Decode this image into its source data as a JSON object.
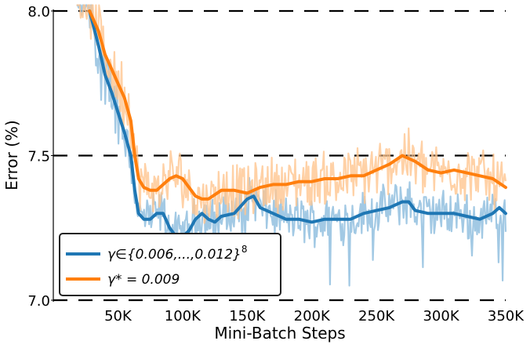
{
  "chart_data": {
    "type": "line",
    "xlabel": "Mini-Batch Steps",
    "ylabel": "Error (%)",
    "xlim": [
      0,
      350000
    ],
    "ylim": [
      7.0,
      8.0
    ],
    "xticks": [
      {
        "value": 50000,
        "label": "50K"
      },
      {
        "value": 100000,
        "label": "100K"
      },
      {
        "value": 150000,
        "label": "150K"
      },
      {
        "value": 200000,
        "label": "200K"
      },
      {
        "value": 250000,
        "label": "250K"
      },
      {
        "value": 300000,
        "label": "300K"
      },
      {
        "value": 350000,
        "label": "350K"
      }
    ],
    "yticks": [
      {
        "value": 7.0,
        "label": "7.0"
      },
      {
        "value": 7.5,
        "label": "7.5"
      },
      {
        "value": 8.0,
        "label": "8.0"
      }
    ],
    "hlines": [
      7.0,
      7.5,
      8.0
    ],
    "legend_position": "bottom-left",
    "series": [
      {
        "legend_math": "γ∈{0.006,...,0.012}",
        "legend_sup": "8",
        "color": "#1f77b4",
        "raw_color": "#92bfdf",
        "x": [
          28000,
          35000,
          40000,
          45000,
          50000,
          55000,
          60000,
          63000,
          66000,
          70000,
          75000,
          80000,
          85000,
          90000,
          95000,
          100000,
          105000,
          110000,
          115000,
          120000,
          125000,
          130000,
          140000,
          150000,
          155000,
          160000,
          170000,
          180000,
          190000,
          200000,
          210000,
          220000,
          230000,
          240000,
          250000,
          260000,
          270000,
          275000,
          280000,
          290000,
          300000,
          310000,
          320000,
          330000,
          340000,
          345000,
          350000
        ],
        "y": [
          8.0,
          7.88,
          7.78,
          7.72,
          7.65,
          7.58,
          7.5,
          7.38,
          7.3,
          7.28,
          7.28,
          7.3,
          7.3,
          7.25,
          7.22,
          7.22,
          7.24,
          7.28,
          7.3,
          7.28,
          7.27,
          7.29,
          7.3,
          7.35,
          7.36,
          7.32,
          7.3,
          7.28,
          7.28,
          7.27,
          7.28,
          7.28,
          7.28,
          7.3,
          7.31,
          7.32,
          7.34,
          7.34,
          7.31,
          7.3,
          7.3,
          7.3,
          7.29,
          7.28,
          7.3,
          7.32,
          7.3
        ]
      },
      {
        "legend_math": "γ* = 0.009",
        "legend_sup": "",
        "color": "#ff7f0e",
        "raw_color": "#ffc690",
        "x": [
          28000,
          35000,
          40000,
          45000,
          50000,
          55000,
          60000,
          63000,
          66000,
          70000,
          75000,
          80000,
          85000,
          90000,
          95000,
          100000,
          105000,
          110000,
          115000,
          120000,
          130000,
          140000,
          150000,
          160000,
          170000,
          180000,
          190000,
          200000,
          210000,
          220000,
          230000,
          240000,
          250000,
          260000,
          270000,
          280000,
          290000,
          300000,
          310000,
          320000,
          330000,
          340000,
          350000
        ],
        "y": [
          8.0,
          7.93,
          7.85,
          7.8,
          7.75,
          7.7,
          7.62,
          7.5,
          7.42,
          7.39,
          7.38,
          7.38,
          7.4,
          7.42,
          7.43,
          7.42,
          7.39,
          7.36,
          7.35,
          7.35,
          7.38,
          7.38,
          7.37,
          7.39,
          7.4,
          7.4,
          7.41,
          7.41,
          7.42,
          7.42,
          7.43,
          7.43,
          7.45,
          7.47,
          7.5,
          7.48,
          7.45,
          7.44,
          7.45,
          7.44,
          7.43,
          7.42,
          7.39
        ]
      }
    ]
  }
}
